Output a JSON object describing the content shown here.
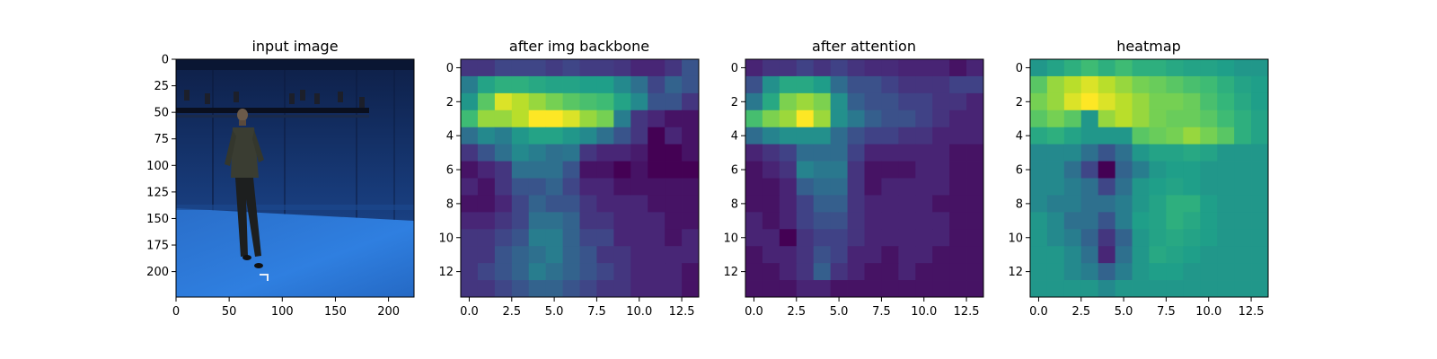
{
  "colors": {
    "background": "#ffffff",
    "axis": "#000000",
    "colormap": "viridis"
  },
  "chart_data": [
    {
      "type": "image",
      "title": "input image",
      "xlabel": "",
      "ylabel": "",
      "xlim": [
        0,
        224
      ],
      "ylim": [
        224,
        0
      ],
      "xticks": [
        0,
        50,
        100,
        150,
        200
      ],
      "yticks": [
        0,
        25,
        50,
        75,
        100,
        125,
        150,
        175,
        200
      ],
      "content": "photo of a person standing in a blue motion-capture studio"
    },
    {
      "type": "heatmap",
      "title": "after img backbone",
      "xlabel": "",
      "ylabel": "",
      "colormap": "viridis",
      "xticks": [
        "0.0",
        "2.5",
        "5.0",
        "7.5",
        "10.0",
        "12.5"
      ],
      "yticks": [
        "0",
        "2",
        "4",
        "6",
        "8",
        "10",
        "12"
      ],
      "values": [
        [
          0.2,
          0.2,
          0.25,
          0.25,
          0.25,
          0.22,
          0.25,
          0.22,
          0.22,
          0.2,
          0.15,
          0.15,
          0.2,
          0.3
        ],
        [
          0.45,
          0.6,
          0.65,
          0.65,
          0.62,
          0.6,
          0.6,
          0.58,
          0.58,
          0.5,
          0.4,
          0.25,
          0.35,
          0.3
        ],
        [
          0.55,
          0.75,
          0.95,
          0.9,
          0.85,
          0.8,
          0.75,
          0.72,
          0.7,
          0.6,
          0.5,
          0.3,
          0.3,
          0.2
        ],
        [
          0.7,
          0.85,
          0.85,
          0.9,
          1.0,
          1.0,
          0.95,
          0.85,
          0.8,
          0.45,
          0.2,
          0.15,
          0.1,
          0.1
        ],
        [
          0.4,
          0.5,
          0.45,
          0.55,
          0.6,
          0.6,
          0.55,
          0.5,
          0.4,
          0.3,
          0.2,
          0.05,
          0.15,
          0.1
        ],
        [
          0.2,
          0.3,
          0.4,
          0.5,
          0.45,
          0.4,
          0.42,
          0.2,
          0.15,
          0.15,
          0.12,
          0.05,
          0.05,
          0.1
        ],
        [
          0.1,
          0.15,
          0.2,
          0.4,
          0.4,
          0.4,
          0.3,
          0.1,
          0.1,
          0.05,
          0.1,
          0.05,
          0.05,
          0.05
        ],
        [
          0.15,
          0.1,
          0.2,
          0.3,
          0.3,
          0.35,
          0.25,
          0.15,
          0.15,
          0.1,
          0.1,
          0.1,
          0.1,
          0.1
        ],
        [
          0.1,
          0.1,
          0.15,
          0.25,
          0.35,
          0.3,
          0.3,
          0.2,
          0.15,
          0.15,
          0.15,
          0.1,
          0.1,
          0.1
        ],
        [
          0.15,
          0.15,
          0.2,
          0.25,
          0.4,
          0.4,
          0.35,
          0.2,
          0.2,
          0.15,
          0.15,
          0.15,
          0.1,
          0.1
        ],
        [
          0.2,
          0.2,
          0.25,
          0.3,
          0.45,
          0.45,
          0.35,
          0.25,
          0.25,
          0.15,
          0.15,
          0.15,
          0.1,
          0.15
        ],
        [
          0.2,
          0.2,
          0.3,
          0.35,
          0.4,
          0.45,
          0.35,
          0.3,
          0.2,
          0.2,
          0.15,
          0.15,
          0.15,
          0.15
        ],
        [
          0.2,
          0.25,
          0.3,
          0.35,
          0.45,
          0.4,
          0.35,
          0.3,
          0.25,
          0.2,
          0.15,
          0.15,
          0.15,
          0.1
        ],
        [
          0.2,
          0.2,
          0.25,
          0.3,
          0.35,
          0.35,
          0.3,
          0.25,
          0.2,
          0.2,
          0.15,
          0.15,
          0.15,
          0.1
        ]
      ]
    },
    {
      "type": "heatmap",
      "title": "after attention",
      "xlabel": "",
      "ylabel": "",
      "colormap": "viridis",
      "xticks": [
        "0.0",
        "2.5",
        "5.0",
        "7.5",
        "10.0",
        "12.5"
      ],
      "yticks": [
        "0",
        "2",
        "4",
        "6",
        "8",
        "10",
        "12"
      ],
      "values": [
        [
          0.1,
          0.15,
          0.15,
          0.2,
          0.15,
          0.2,
          0.15,
          0.12,
          0.12,
          0.1,
          0.1,
          0.1,
          0.05,
          0.1
        ],
        [
          0.25,
          0.5,
          0.6,
          0.6,
          0.55,
          0.35,
          0.25,
          0.25,
          0.2,
          0.15,
          0.15,
          0.15,
          0.2,
          0.2
        ],
        [
          0.4,
          0.6,
          0.8,
          0.85,
          0.8,
          0.5,
          0.3,
          0.25,
          0.25,
          0.2,
          0.2,
          0.15,
          0.15,
          0.1
        ],
        [
          0.7,
          0.8,
          0.85,
          1.0,
          0.85,
          0.5,
          0.4,
          0.3,
          0.25,
          0.25,
          0.2,
          0.15,
          0.1,
          0.1
        ],
        [
          0.35,
          0.45,
          0.5,
          0.5,
          0.5,
          0.35,
          0.25,
          0.2,
          0.2,
          0.15,
          0.15,
          0.1,
          0.1,
          0.1
        ],
        [
          0.1,
          0.15,
          0.2,
          0.35,
          0.35,
          0.35,
          0.2,
          0.1,
          0.1,
          0.1,
          0.1,
          0.1,
          0.05,
          0.05
        ],
        [
          0.05,
          0.1,
          0.15,
          0.45,
          0.4,
          0.4,
          0.15,
          0.05,
          0.05,
          0.05,
          0.1,
          0.1,
          0.05,
          0.05
        ],
        [
          0.05,
          0.05,
          0.1,
          0.3,
          0.35,
          0.35,
          0.15,
          0.05,
          0.1,
          0.1,
          0.1,
          0.1,
          0.05,
          0.05
        ],
        [
          0.05,
          0.05,
          0.1,
          0.2,
          0.3,
          0.3,
          0.15,
          0.1,
          0.1,
          0.1,
          0.1,
          0.05,
          0.05,
          0.05
        ],
        [
          0.1,
          0.05,
          0.1,
          0.2,
          0.25,
          0.25,
          0.15,
          0.1,
          0.1,
          0.1,
          0.1,
          0.1,
          0.05,
          0.05
        ],
        [
          0.1,
          0.1,
          0.0,
          0.15,
          0.2,
          0.2,
          0.15,
          0.1,
          0.1,
          0.1,
          0.1,
          0.1,
          0.05,
          0.05
        ],
        [
          0.05,
          0.1,
          0.1,
          0.15,
          0.25,
          0.2,
          0.1,
          0.1,
          0.05,
          0.1,
          0.1,
          0.05,
          0.05,
          0.05
        ],
        [
          0.05,
          0.05,
          0.1,
          0.15,
          0.3,
          0.15,
          0.1,
          0.05,
          0.05,
          0.1,
          0.05,
          0.05,
          0.05,
          0.05
        ],
        [
          0.05,
          0.05,
          0.05,
          0.1,
          0.1,
          0.05,
          0.05,
          0.05,
          0.05,
          0.05,
          0.05,
          0.05,
          0.05,
          0.05
        ]
      ]
    },
    {
      "type": "heatmap",
      "title": "heatmap",
      "xlabel": "",
      "ylabel": "",
      "colormap": "viridis",
      "xticks": [
        "0.0",
        "2.5",
        "5.0",
        "7.5",
        "10.0",
        "12.5"
      ],
      "yticks": [
        "0",
        "2",
        "4",
        "6",
        "8",
        "10",
        "12"
      ],
      "values": [
        [
          0.55,
          0.6,
          0.65,
          0.7,
          0.65,
          0.7,
          0.65,
          0.65,
          0.62,
          0.6,
          0.6,
          0.58,
          0.55,
          0.55
        ],
        [
          0.75,
          0.85,
          0.9,
          0.95,
          0.9,
          0.85,
          0.8,
          0.78,
          0.75,
          0.72,
          0.7,
          0.65,
          0.6,
          0.58
        ],
        [
          0.8,
          0.85,
          0.95,
          1.0,
          0.95,
          0.9,
          0.85,
          0.8,
          0.8,
          0.78,
          0.72,
          0.68,
          0.62,
          0.58
        ],
        [
          0.75,
          0.8,
          0.75,
          0.55,
          0.85,
          0.9,
          0.85,
          0.8,
          0.78,
          0.78,
          0.75,
          0.7,
          0.65,
          0.6
        ],
        [
          0.62,
          0.65,
          0.6,
          0.55,
          0.55,
          0.55,
          0.75,
          0.78,
          0.8,
          0.85,
          0.8,
          0.75,
          0.65,
          0.6
        ],
        [
          0.5,
          0.5,
          0.5,
          0.4,
          0.3,
          0.4,
          0.55,
          0.6,
          0.6,
          0.62,
          0.6,
          0.55,
          0.55,
          0.55
        ],
        [
          0.5,
          0.5,
          0.4,
          0.25,
          0.05,
          0.35,
          0.45,
          0.55,
          0.58,
          0.58,
          0.55,
          0.55,
          0.55,
          0.55
        ],
        [
          0.5,
          0.5,
          0.45,
          0.4,
          0.25,
          0.4,
          0.55,
          0.58,
          0.6,
          0.58,
          0.55,
          0.55,
          0.55,
          0.55
        ],
        [
          0.5,
          0.45,
          0.45,
          0.4,
          0.4,
          0.45,
          0.55,
          0.6,
          0.65,
          0.65,
          0.58,
          0.55,
          0.55,
          0.55
        ],
        [
          0.55,
          0.5,
          0.4,
          0.4,
          0.3,
          0.45,
          0.58,
          0.6,
          0.65,
          0.62,
          0.58,
          0.55,
          0.55,
          0.55
        ],
        [
          0.55,
          0.5,
          0.45,
          0.35,
          0.2,
          0.35,
          0.55,
          0.6,
          0.62,
          0.6,
          0.58,
          0.55,
          0.55,
          0.55
        ],
        [
          0.55,
          0.55,
          0.5,
          0.4,
          0.15,
          0.4,
          0.55,
          0.62,
          0.6,
          0.58,
          0.55,
          0.55,
          0.55,
          0.55
        ],
        [
          0.55,
          0.55,
          0.5,
          0.45,
          0.35,
          0.45,
          0.55,
          0.58,
          0.58,
          0.55,
          0.55,
          0.55,
          0.55,
          0.55
        ],
        [
          0.55,
          0.55,
          0.55,
          0.55,
          0.5,
          0.55,
          0.55,
          0.55,
          0.55,
          0.55,
          0.55,
          0.55,
          0.55,
          0.55
        ]
      ]
    }
  ]
}
